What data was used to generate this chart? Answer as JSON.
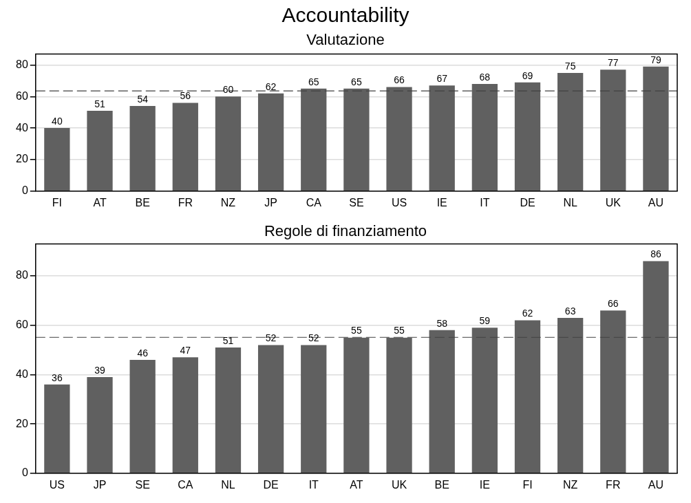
{
  "chart_data": [
    {
      "type": "bar",
      "title": "Accountability",
      "subtitle": "Valutazione",
      "categories": [
        "FI",
        "AT",
        "BE",
        "FR",
        "NZ",
        "JP",
        "CA",
        "SE",
        "US",
        "IE",
        "IT",
        "DE",
        "NL",
        "UK",
        "AU"
      ],
      "values": [
        40,
        51,
        54,
        56,
        60,
        62,
        65,
        65,
        66,
        67,
        68,
        69,
        75,
        77,
        79
      ],
      "color": "#606060",
      "data_labels": true,
      "ylim": [
        0,
        87
      ],
      "yticks": [
        0,
        20,
        40,
        60,
        80
      ],
      "grid": "y",
      "legend": false,
      "ref_lines": [
        {
          "axis": "y",
          "value": 63.6,
          "line_style": "dashed",
          "color": "#404040"
        }
      ]
    },
    {
      "type": "bar",
      "title": "Regole di finanziamento",
      "categories": [
        "US",
        "JP",
        "SE",
        "CA",
        "NL",
        "DE",
        "IT",
        "AT",
        "UK",
        "BE",
        "IE",
        "FI",
        "NZ",
        "FR",
        "AU"
      ],
      "values": [
        36,
        39,
        46,
        47,
        51,
        52,
        52,
        55,
        55,
        58,
        59,
        62,
        63,
        66,
        86
      ],
      "color": "#606060",
      "data_labels": true,
      "ylim": [
        0,
        93
      ],
      "yticks": [
        0,
        20,
        40,
        60,
        80
      ],
      "grid": "y",
      "legend": false,
      "ref_lines": [
        {
          "axis": "y",
          "value": 55.1,
          "line_style": "dashed",
          "color": "#404040"
        }
      ]
    }
  ]
}
